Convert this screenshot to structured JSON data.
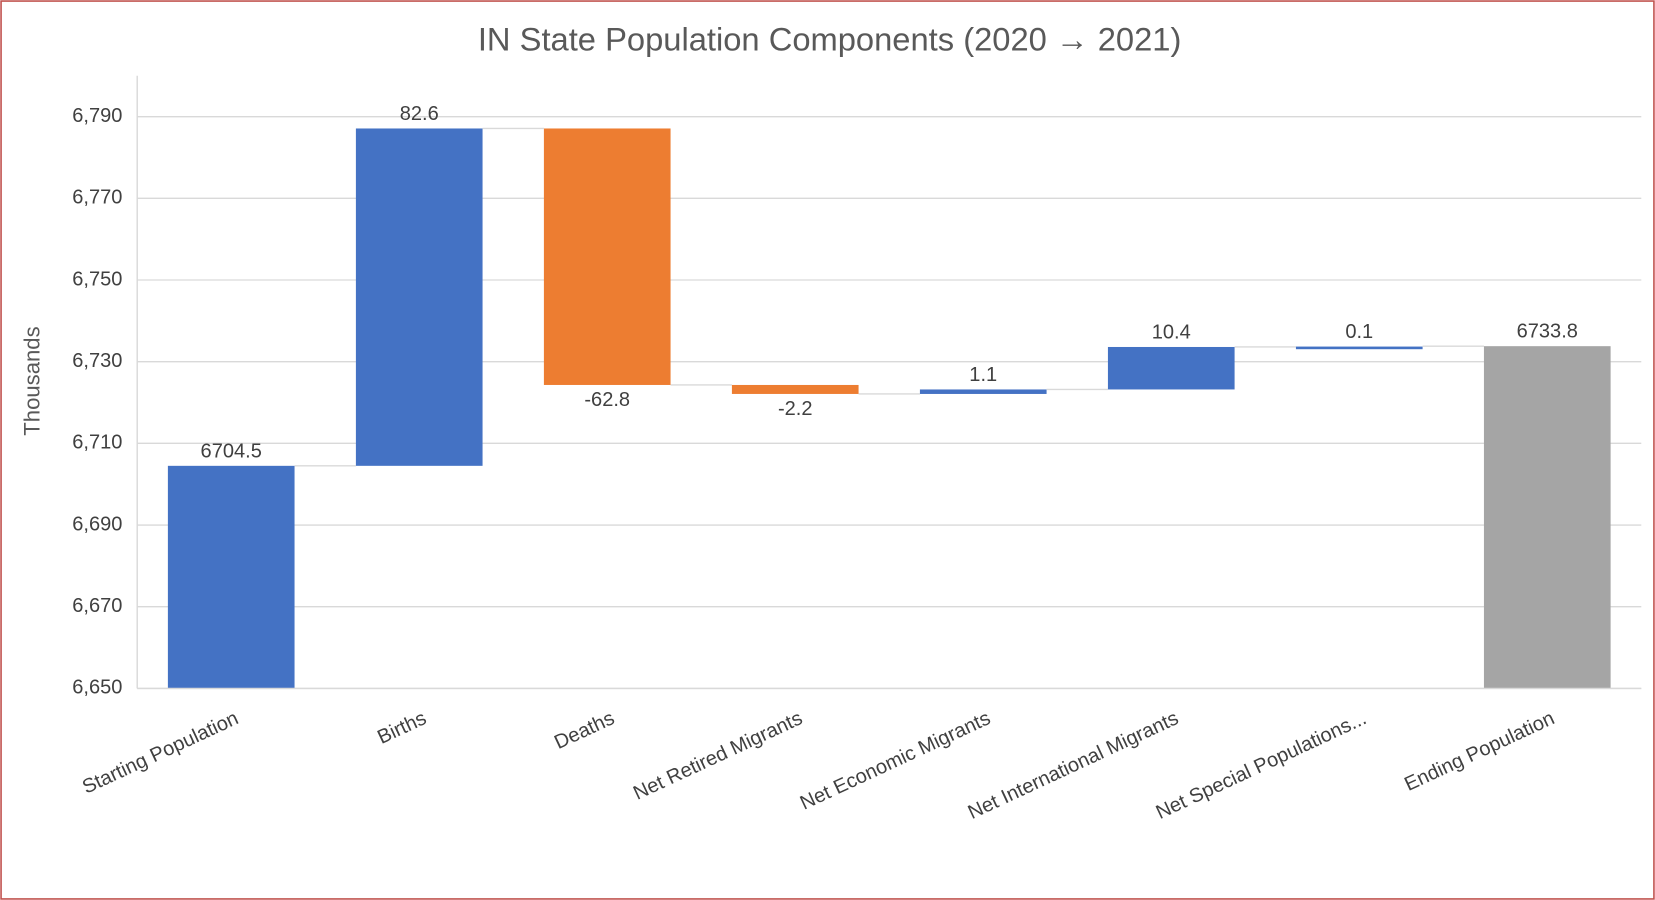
{
  "chart_data": {
    "type": "waterfall",
    "title": "IN State Population Components (2020 → 2021)",
    "y_label": "Thousands",
    "categories": [
      "Starting Population",
      "Births",
      "Deaths",
      "Net Retired Migrants",
      "Net Economic Migrants",
      "Net International Migrants",
      "Net Special Populations...",
      "Ending Population"
    ],
    "values": [
      6704.5,
      82.6,
      -62.8,
      -2.2,
      1.1,
      10.4,
      0.1,
      6733.8
    ],
    "totals": [
      true,
      false,
      false,
      false,
      false,
      false,
      false,
      true
    ],
    "colors": [
      "#4472c4",
      "#4472c4",
      "#ed7d31",
      "#ed7d31",
      "#4472c4",
      "#4472c4",
      "#4472c4",
      "#a5a5a5"
    ],
    "ylim": [
      6650,
      6800
    ],
    "yticks": [
      {
        "value": 6650,
        "label": "6,650"
      },
      {
        "value": 6670,
        "label": "6,670"
      },
      {
        "value": 6690,
        "label": "6,690"
      },
      {
        "value": 6710,
        "label": "6,710"
      },
      {
        "value": 6730,
        "label": "6,730"
      },
      {
        "value": 6750,
        "label": "6,750"
      },
      {
        "value": 6770,
        "label": "6,770"
      },
      {
        "value": 6790,
        "label": "6,790"
      }
    ],
    "grid": true
  }
}
